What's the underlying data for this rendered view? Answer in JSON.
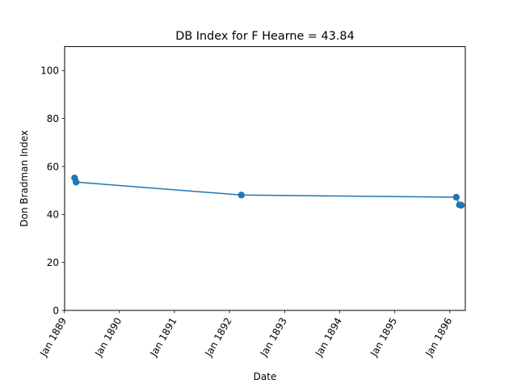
{
  "chart_data": {
    "type": "line",
    "title": "DB Index for F Hearne = 43.84",
    "xlabel": "Date",
    "ylabel": "Don Bradman Index",
    "ylim": [
      0,
      110
    ],
    "xlim": [
      "1889-01-03",
      "1896-04-13"
    ],
    "yticks": [
      0,
      20,
      40,
      60,
      80,
      100
    ],
    "xticks": [
      {
        "date": "1889-01-01",
        "label": "Jan 1889"
      },
      {
        "date": "1890-01-01",
        "label": "Jan 1890"
      },
      {
        "date": "1891-01-01",
        "label": "Jan 1891"
      },
      {
        "date": "1892-01-01",
        "label": "Jan 1892"
      },
      {
        "date": "1893-01-01",
        "label": "Jan 1893"
      },
      {
        "date": "1894-01-01",
        "label": "Jan 1894"
      },
      {
        "date": "1895-01-01",
        "label": "Jan 1895"
      },
      {
        "date": "1896-01-01",
        "label": "Jan 1896"
      }
    ],
    "grid": false,
    "series": [
      {
        "color": "#1f77b4",
        "points": [
          {
            "x": "1889-03-10",
            "y": 55.2
          },
          {
            "x": "1889-03-20",
            "y": 53.5
          },
          {
            "x": "1892-03-20",
            "y": 48.1
          },
          {
            "x": "1896-02-13",
            "y": 47.2
          },
          {
            "x": "1896-03-05",
            "y": 44.0
          },
          {
            "x": "1896-03-18",
            "y": 43.84
          }
        ]
      }
    ]
  }
}
